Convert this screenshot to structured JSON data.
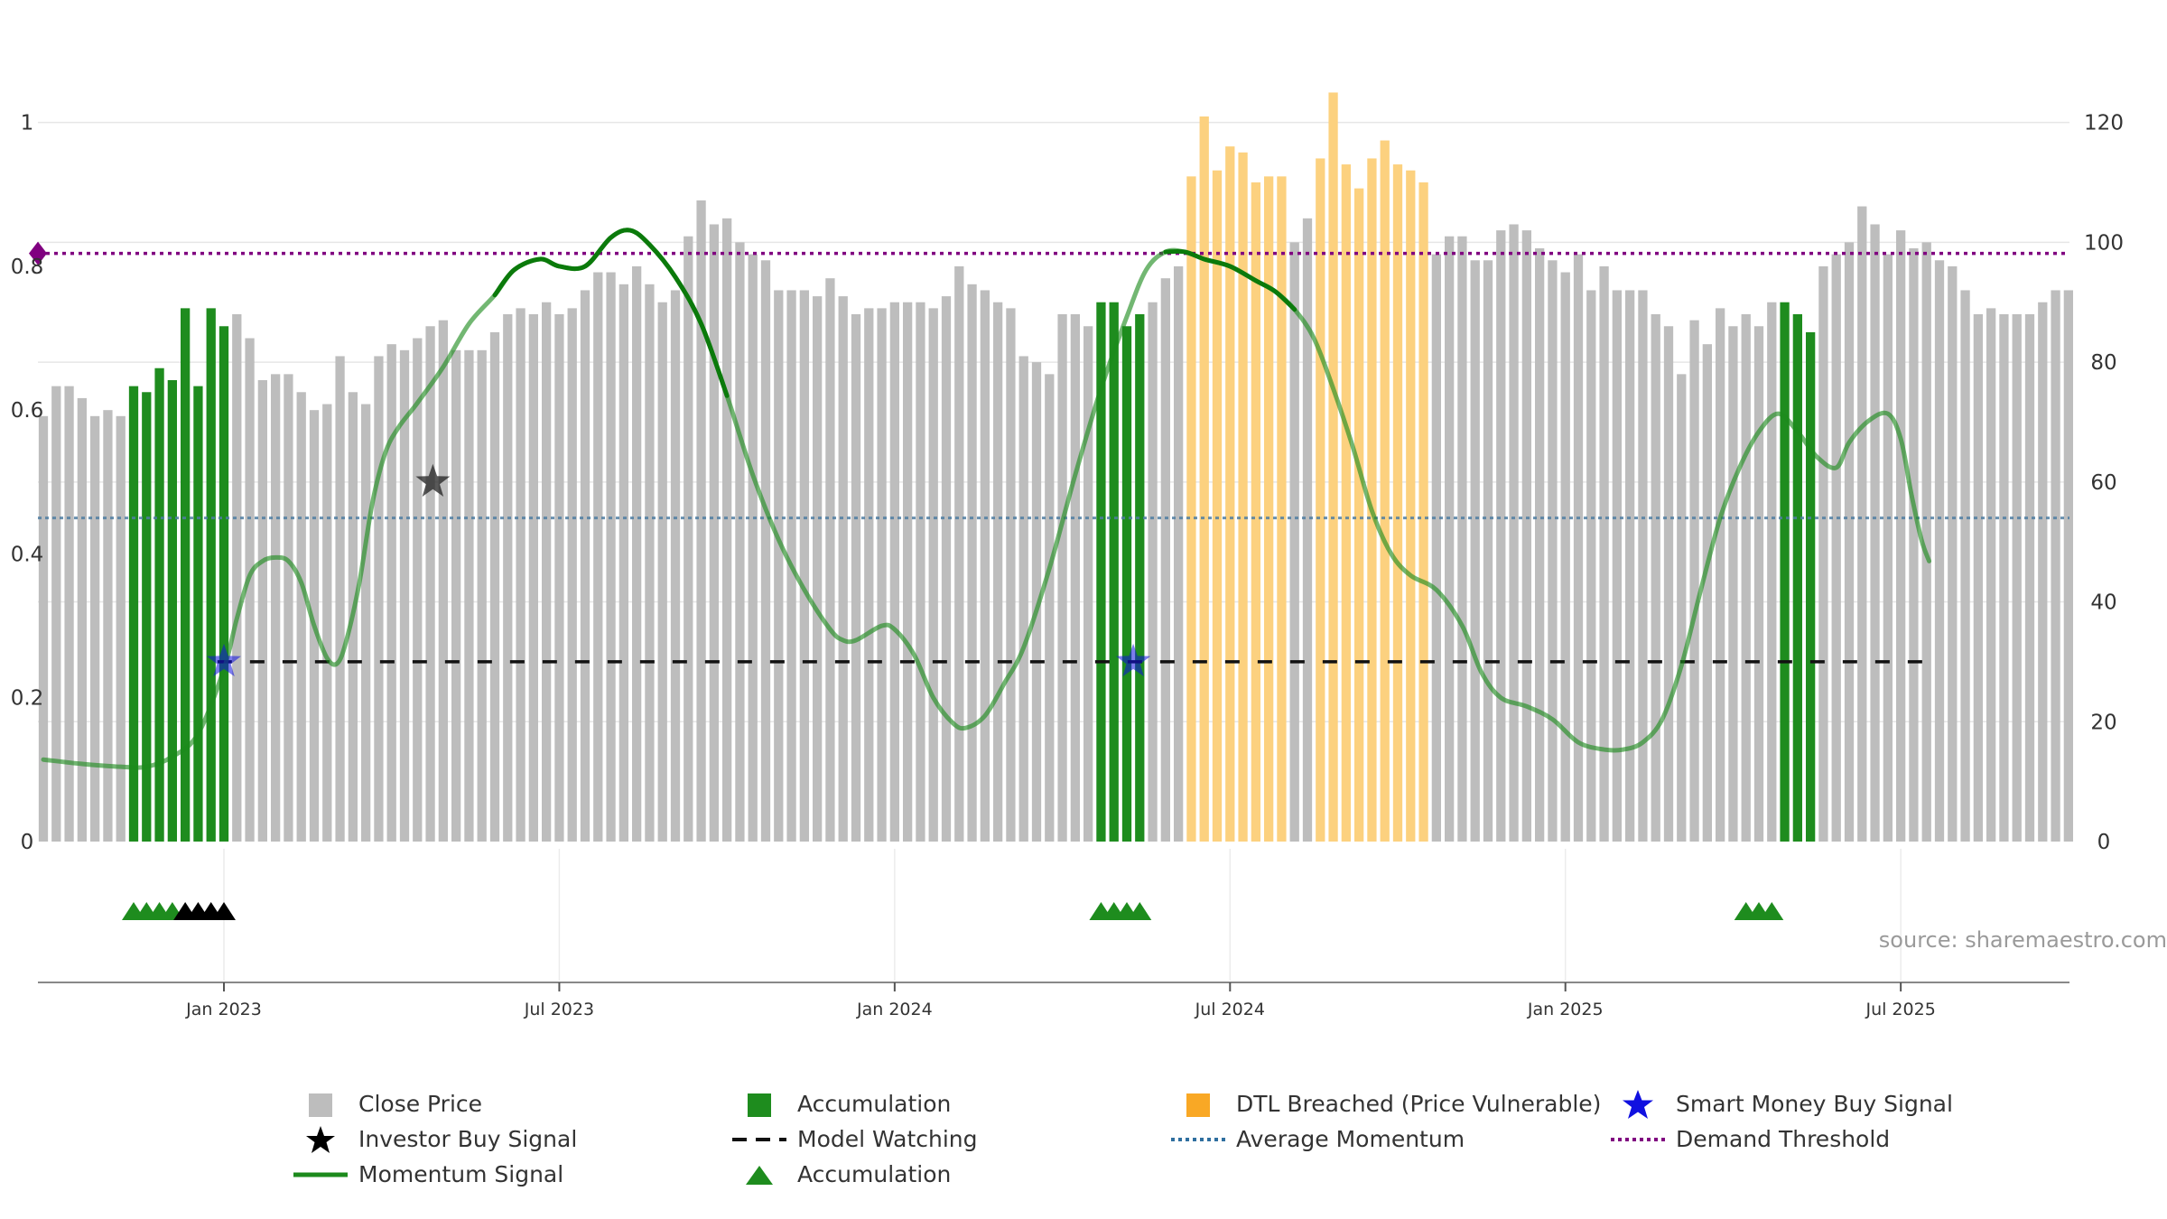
{
  "chart_data": {
    "type": "bar",
    "source_note": "source: sharemaestro.com",
    "left_axis": {
      "ticks": [
        "0",
        "0.2",
        "0.4",
        "0.6",
        "0.8",
        "1"
      ],
      "ylim": [
        0,
        1.1
      ]
    },
    "right_axis": {
      "ticks": [
        "0",
        "20",
        "40",
        "60",
        "80",
        "100",
        "120"
      ],
      "ylim": [
        0,
        132
      ]
    },
    "date_ticks": [
      {
        "label": "Jan 2023",
        "week": 14
      },
      {
        "label": "Jul 2023",
        "week": 40
      },
      {
        "label": "Jan 2024",
        "week": 66
      },
      {
        "label": "Jul 2024",
        "week": 92
      },
      {
        "label": "Jan 2025",
        "week": 118
      },
      {
        "label": "Jul 2025",
        "week": 144
      }
    ],
    "close_price": [
      71,
      76,
      76,
      74,
      71,
      72,
      71,
      76,
      75,
      79,
      77,
      89,
      76,
      89,
      86,
      88,
      84,
      77,
      78,
      78,
      75,
      72,
      73,
      81,
      75,
      73,
      81,
      83,
      82,
      84,
      86,
      87,
      82,
      82,
      82,
      85,
      88,
      89,
      88,
      90,
      88,
      89,
      92,
      95,
      95,
      93,
      96,
      93,
      90,
      92,
      101,
      107,
      103,
      104,
      100,
      98,
      97,
      92,
      92,
      92,
      91,
      94,
      91,
      88,
      89,
      89,
      90,
      90,
      90,
      89,
      91,
      96,
      93,
      92,
      90,
      89,
      81,
      80,
      78,
      88,
      88,
      86,
      90,
      90,
      86,
      88,
      90,
      94,
      96,
      111,
      121,
      112,
      116,
      115,
      110,
      111,
      111,
      100,
      104,
      114,
      125,
      113,
      109,
      114,
      117,
      113,
      112,
      110,
      98,
      101,
      101,
      97,
      97,
      102,
      103,
      102,
      99,
      97,
      95,
      98,
      92,
      96,
      92,
      92,
      92,
      88,
      86,
      78,
      87,
      83,
      89,
      86,
      88,
      86,
      90,
      90,
      88,
      85,
      96,
      98,
      100,
      106,
      103,
      98,
      102,
      99,
      100,
      97,
      96,
      92,
      88,
      89,
      88,
      88,
      88,
      90,
      92,
      92
    ],
    "bar_category": [
      "n",
      "n",
      "n",
      "n",
      "n",
      "n",
      "n",
      "a",
      "a",
      "a",
      "a",
      "a",
      "a",
      "a",
      "a",
      "n",
      "n",
      "n",
      "n",
      "n",
      "n",
      "n",
      "n",
      "n",
      "n",
      "n",
      "n",
      "n",
      "n",
      "n",
      "n",
      "n",
      "n",
      "n",
      "n",
      "n",
      "n",
      "n",
      "n",
      "n",
      "n",
      "n",
      "n",
      "n",
      "n",
      "n",
      "n",
      "n",
      "n",
      "n",
      "n",
      "n",
      "n",
      "n",
      "n",
      "n",
      "n",
      "n",
      "n",
      "n",
      "n",
      "n",
      "n",
      "n",
      "n",
      "n",
      "n",
      "n",
      "n",
      "n",
      "n",
      "n",
      "n",
      "n",
      "n",
      "n",
      "n",
      "n",
      "n",
      "n",
      "n",
      "n",
      "a",
      "a",
      "a",
      "a",
      "n",
      "n",
      "n",
      "d",
      "d",
      "d",
      "d",
      "d",
      "d",
      "d",
      "d",
      "n",
      "n",
      "d",
      "d",
      "d",
      "d",
      "d",
      "d",
      "d",
      "d",
      "d",
      "n",
      "n",
      "n",
      "n",
      "n",
      "n",
      "n",
      "n",
      "n",
      "n",
      "n",
      "n",
      "n",
      "n",
      "n",
      "n",
      "n",
      "n",
      "n",
      "n",
      "n",
      "n",
      "n",
      "n",
      "n",
      "n",
      "n",
      "a",
      "a",
      "a",
      "n",
      "n",
      "n",
      "n",
      "n",
      "n",
      "n",
      "n",
      "n",
      "n",
      "n",
      "n",
      "n",
      "n",
      "n",
      "n",
      "n",
      "n",
      "n",
      "n"
    ],
    "momentum_signal": [
      [
        0,
        0.114
      ],
      [
        3,
        0.108
      ],
      [
        6,
        0.104
      ],
      [
        8,
        0.104
      ],
      [
        10,
        0.118
      ],
      [
        12,
        0.15
      ],
      [
        14,
        0.24
      ],
      [
        15,
        0.31
      ],
      [
        16,
        0.37
      ],
      [
        17,
        0.39
      ],
      [
        18,
        0.395
      ],
      [
        19,
        0.39
      ],
      [
        20,
        0.36
      ],
      [
        21,
        0.3
      ],
      [
        22,
        0.255
      ],
      [
        22.8,
        0.248
      ],
      [
        23.5,
        0.28
      ],
      [
        24.5,
        0.36
      ],
      [
        25.5,
        0.47
      ],
      [
        26.5,
        0.54
      ],
      [
        27.5,
        0.575
      ],
      [
        29,
        0.61
      ],
      [
        31,
        0.66
      ],
      [
        33,
        0.72
      ],
      [
        35,
        0.76
      ],
      [
        36.5,
        0.795
      ],
      [
        38.5,
        0.81
      ],
      [
        40,
        0.8
      ],
      [
        42,
        0.8
      ],
      [
        44,
        0.84
      ],
      [
        45.5,
        0.85
      ],
      [
        47,
        0.83
      ],
      [
        49,
        0.785
      ],
      [
        51,
        0.72
      ],
      [
        53,
        0.62
      ],
      [
        55,
        0.51
      ],
      [
        57,
        0.42
      ],
      [
        59,
        0.35
      ],
      [
        61,
        0.295
      ],
      [
        62,
        0.28
      ],
      [
        63,
        0.28
      ],
      [
        65,
        0.3
      ],
      [
        66,
        0.295
      ],
      [
        67.5,
        0.26
      ],
      [
        69,
        0.2
      ],
      [
        70.5,
        0.165
      ],
      [
        71.5,
        0.158
      ],
      [
        73,
        0.175
      ],
      [
        74.5,
        0.22
      ],
      [
        76,
        0.27
      ],
      [
        78,
        0.38
      ],
      [
        80,
        0.51
      ],
      [
        82,
        0.63
      ],
      [
        84,
        0.73
      ],
      [
        85.5,
        0.795
      ],
      [
        87,
        0.82
      ],
      [
        88.5,
        0.82
      ],
      [
        90,
        0.81
      ],
      [
        92,
        0.8
      ],
      [
        94,
        0.78
      ],
      [
        95.5,
        0.765
      ],
      [
        97,
        0.74
      ],
      [
        98.5,
        0.7
      ],
      [
        100,
        0.63
      ],
      [
        101.5,
        0.55
      ],
      [
        103,
        0.46
      ],
      [
        104.5,
        0.4
      ],
      [
        106,
        0.37
      ],
      [
        108,
        0.35
      ],
      [
        110,
        0.3
      ],
      [
        111.5,
        0.235
      ],
      [
        113,
        0.2
      ],
      [
        115,
        0.188
      ],
      [
        117,
        0.17
      ],
      [
        119,
        0.138
      ],
      [
        121,
        0.128
      ],
      [
        122.5,
        0.128
      ],
      [
        124,
        0.138
      ],
      [
        125.5,
        0.17
      ],
      [
        127,
        0.245
      ],
      [
        128.5,
        0.35
      ],
      [
        130,
        0.45
      ],
      [
        131.5,
        0.52
      ],
      [
        133,
        0.57
      ],
      [
        134.5,
        0.595
      ],
      [
        136,
        0.57
      ],
      [
        137.5,
        0.535
      ],
      [
        139,
        0.52
      ],
      [
        140,
        0.555
      ],
      [
        141.5,
        0.585
      ],
      [
        143,
        0.595
      ],
      [
        144,
        0.56
      ],
      [
        144.8,
        0.485
      ],
      [
        145.6,
        0.42
      ],
      [
        146.2,
        0.39
      ]
    ],
    "momentum_emphasis_ranges": [
      [
        34,
        53
      ],
      [
        86,
        98
      ]
    ],
    "model_watching_level": 0.25,
    "model_watching_range": [
      13.5,
      146.4
    ],
    "average_momentum": 0.45,
    "demand_threshold": 0.818,
    "demand_threshold_marker_value": 0.818,
    "investor_buy_signals": [
      {
        "week": 30.2,
        "value": 0.5
      }
    ],
    "smart_money_buy_signals": [
      {
        "week": 14.0,
        "value": 0.25
      },
      {
        "week": 84.5,
        "value": 0.25
      }
    ],
    "accumulation_triangles_green": [
      7,
      8,
      9,
      10,
      82,
      83,
      84,
      85,
      132,
      133,
      134
    ],
    "accumulation_triangles_black": [
      11,
      12,
      13,
      14
    ],
    "colors": {
      "close_price": "#bdbdbd",
      "accumulation": "#1e8c1e",
      "dtl_breached": "#fcd17f",
      "momentum": "#1c8a1c",
      "model_watching": "#111111",
      "average_momentum": "#4f7ea3",
      "demand_threshold": "#800080",
      "smart_money": "#1010e0",
      "investor": "#222222"
    }
  },
  "legend": {
    "close_price": "Close Price",
    "accumulation_bar": "Accumulation",
    "dtl_breached": "DTL Breached (Price Vulnerable)",
    "smart_money": "Smart Money Buy Signal",
    "investor_buy": "Investor Buy Signal",
    "model_watching": "Model Watching",
    "average_momentum": "Average Momentum",
    "demand_threshold": "Demand Threshold",
    "momentum_signal": "Momentum Signal",
    "accumulation_marker": "Accumulation"
  }
}
